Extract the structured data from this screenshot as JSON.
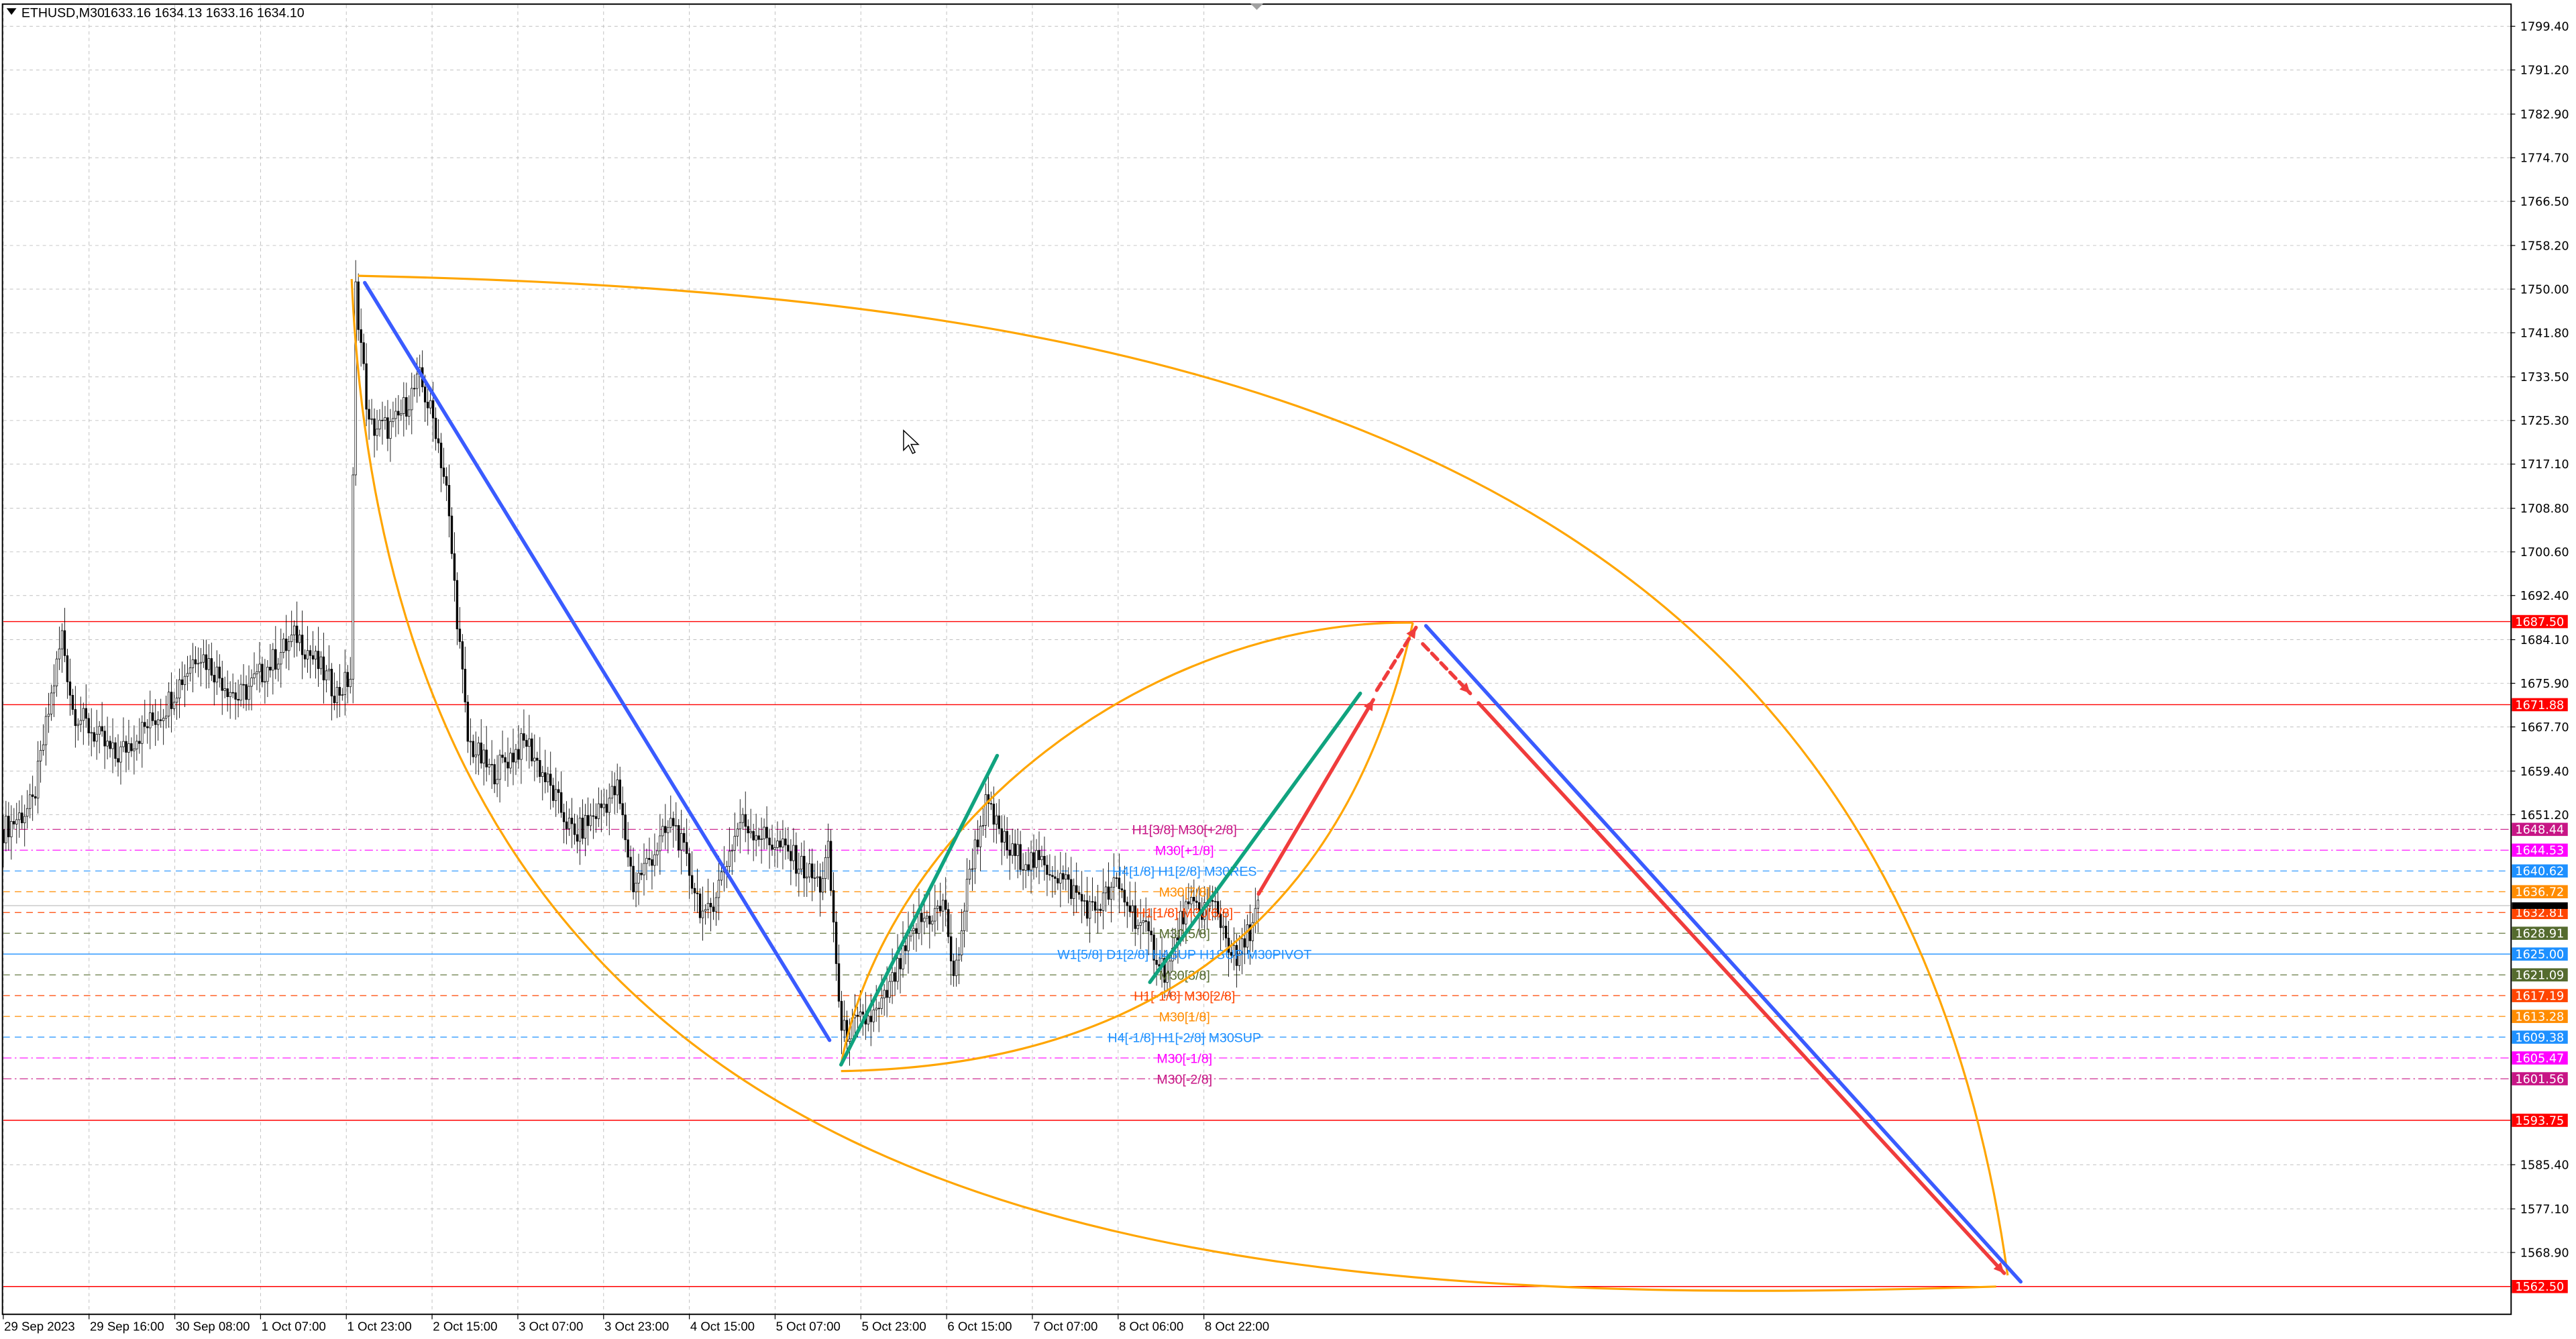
{
  "header": {
    "symbol": "ETHUSD,M30",
    "ohlc": "1633.16 1634.13 1633.16 1634.10"
  },
  "chart_data": {
    "type": "candlestick",
    "symbol": "ETHUSD",
    "timeframe": "M30",
    "ylim": [
      1557.0,
      1803.0
    ],
    "grid": true,
    "y_ticks": [
      "1799.40",
      "1791.20",
      "1782.90",
      "1774.70",
      "1766.50",
      "1758.20",
      "1750.00",
      "1741.80",
      "1733.50",
      "1725.30",
      "1717.10",
      "1708.80",
      "1700.60",
      "1692.40",
      "1684.10",
      "1675.90",
      "1667.70",
      "1659.40",
      "1651.20",
      "1585.40",
      "1577.10",
      "1568.90"
    ],
    "x_ticks": [
      "29 Sep 2023",
      "29 Sep 16:00",
      "30 Sep 08:00",
      "1 Oct 07:00",
      "1 Oct 23:00",
      "2 Oct 15:00",
      "3 Oct 07:00",
      "3 Oct 23:00",
      "4 Oct 15:00",
      "5 Oct 07:00",
      "5 Oct 23:00",
      "6 Oct 15:00",
      "7 Oct 07:00",
      "8 Oct 06:00",
      "8 Oct 22:00"
    ],
    "price_path": [
      [
        0,
        1648.4
      ],
      [
        11,
        1653
      ],
      [
        22,
        1685
      ],
      [
        26,
        1671
      ],
      [
        42,
        1662
      ],
      [
        60,
        1671
      ],
      [
        73,
        1682
      ],
      [
        88,
        1673
      ],
      [
        110,
        1685
      ],
      [
        125,
        1674
      ],
      [
        130,
        1677
      ],
      [
        132,
        1750
      ],
      [
        137,
        1724
      ],
      [
        146,
        1724
      ],
      [
        156,
        1733
      ],
      [
        162,
        1724
      ],
      [
        166,
        1712
      ],
      [
        174,
        1665
      ],
      [
        183,
        1659
      ],
      [
        196,
        1665
      ],
      [
        214,
        1647
      ],
      [
        230,
        1656
      ],
      [
        236,
        1638
      ],
      [
        251,
        1650
      ],
      [
        263,
        1631
      ],
      [
        276,
        1650
      ],
      [
        294,
        1644
      ],
      [
        306,
        1638
      ],
      [
        309,
        1644
      ],
      [
        314,
        1610
      ],
      [
        328,
        1614
      ],
      [
        343,
        1631
      ],
      [
        353,
        1634
      ],
      [
        356,
        1619
      ],
      [
        362,
        1641
      ],
      [
        368,
        1653
      ],
      [
        377,
        1644
      ],
      [
        393,
        1641
      ],
      [
        408,
        1633
      ],
      [
        417,
        1638
      ],
      [
        430,
        1627
      ],
      [
        436,
        1621
      ],
      [
        442,
        1633
      ],
      [
        454,
        1634
      ],
      [
        462,
        1623
      ],
      [
        470,
        1634.1
      ]
    ],
    "current_price": "1634.10",
    "levels": [
      {
        "price": 1687.5,
        "label": "1687.50",
        "color": "#ff0000",
        "style": "solid"
      },
      {
        "price": 1671.88,
        "label": "1671.88",
        "color": "#ff0000",
        "style": "solid"
      },
      {
        "price": 1648.44,
        "label": "1648.44",
        "color": "#c71585",
        "style": "dashdot"
      },
      {
        "price": 1644.53,
        "label": "1644.53",
        "color": "#ff00ff",
        "style": "dashdot"
      },
      {
        "price": 1640.62,
        "label": "1640.62",
        "color": "#1e90ff",
        "style": "dash"
      },
      {
        "price": 1636.72,
        "label": "1636.72",
        "color": "#ff8c00",
        "style": "dash"
      },
      {
        "price": 1632.81,
        "label": "1632.81",
        "color": "#ff4500",
        "style": "dash"
      },
      {
        "price": 1628.91,
        "label": "1628.91",
        "color": "#556b2f",
        "style": "dash"
      },
      {
        "price": 1625.0,
        "label": "1625.00",
        "color": "#1e90ff",
        "style": "solid"
      },
      {
        "price": 1621.09,
        "label": "1621.09",
        "color": "#556b2f",
        "style": "dash"
      },
      {
        "price": 1617.19,
        "label": "1617.19",
        "color": "#ff4500",
        "style": "dash"
      },
      {
        "price": 1613.28,
        "label": "1613.28",
        "color": "#ff8c00",
        "style": "dash"
      },
      {
        "price": 1609.38,
        "label": "1609.38",
        "color": "#1e90ff",
        "style": "dash"
      },
      {
        "price": 1605.47,
        "label": "1605.47",
        "color": "#ff00ff",
        "style": "dashdot"
      },
      {
        "price": 1601.56,
        "label": "1601.56",
        "color": "#c71585",
        "style": "dashdot"
      },
      {
        "price": 1593.75,
        "label": "1593.75",
        "color": "#ff0000",
        "style": "solid"
      },
      {
        "price": 1562.5,
        "label": "1562.50",
        "color": "#ff0000",
        "style": "solid"
      }
    ],
    "level_texts": [
      {
        "price": 1648.44,
        "text": "H1[3/8] M30[+2/8]",
        "color": "#c71585"
      },
      {
        "price": 1644.53,
        "text": "M30[+1/8]",
        "color": "#ff00ff"
      },
      {
        "price": 1640.62,
        "text": "H4[1/8] H1[2/8] M30RES",
        "color": "#1e90ff"
      },
      {
        "price": 1636.72,
        "text": "M30[7/8]",
        "color": "#ff8c00"
      },
      {
        "price": 1632.81,
        "text": "H1[1/8] M30[6/8]",
        "color": "#ff4500"
      },
      {
        "price": 1628.91,
        "text": "M30[5/8]",
        "color": "#556b2f"
      },
      {
        "price": 1625.0,
        "text": "W1[5/8] D1[2/8] H4SUP H1SUP M30PIVOT",
        "color": "#1e90ff"
      },
      {
        "price": 1621.09,
        "text": "M30[3/8]",
        "color": "#556b2f"
      },
      {
        "price": 1617.19,
        "text": "H1[-1/8] M30[2/8]",
        "color": "#ff4500"
      },
      {
        "price": 1613.28,
        "text": "M30[1/8]",
        "color": "#ff8c00"
      },
      {
        "price": 1609.38,
        "text": "H4[-1/8] H1[-2/8] M30SUP",
        "color": "#1e90ff"
      },
      {
        "price": 1605.47,
        "text": "M30[-1/8]",
        "color": "#ff00ff"
      },
      {
        "price": 1601.56,
        "text": "M30[-2/8]",
        "color": "#c71585"
      }
    ],
    "trendlines": [
      {
        "name": "blue-trendline-down",
        "color": "#3a5bff",
        "dash": false,
        "points": [
          [
            135.4,
            1751.2
          ],
          [
            309.5,
            1608.8
          ]
        ]
      },
      {
        "name": "blue-trendline-projection",
        "color": "#3a5bff",
        "dash": false,
        "points": [
          [
            532.9,
            1686.7
          ],
          [
            755.7,
            1563.4
          ]
        ]
      },
      {
        "name": "green-channel-1",
        "color": "#10a37f",
        "dash": false,
        "points": [
          [
            313.8,
            1604.2
          ],
          [
            372.3,
            1662.3
          ]
        ]
      },
      {
        "name": "green-channel-2",
        "color": "#10a37f",
        "dash": false,
        "points": [
          [
            429.5,
            1619.7
          ],
          [
            508.3,
            1674.0
          ]
        ]
      },
      {
        "name": "red-arrow-up",
        "color": "#f03c3c",
        "dash": false,
        "arrow": true,
        "points": [
          [
            470.2,
            1636.3
          ],
          [
            513.2,
            1672.8
          ]
        ]
      },
      {
        "name": "red-dashed-arrow-up",
        "color": "#f03c3c",
        "dash": true,
        "arrow": true,
        "points": [
          [
            514.5,
            1674.6
          ],
          [
            529.2,
            1686.4
          ]
        ]
      },
      {
        "name": "red-dashed-arrow-down",
        "color": "#f03c3c",
        "dash": true,
        "arrow": true,
        "points": [
          [
            531.7,
            1683.3
          ],
          [
            549.5,
            1674.0
          ]
        ]
      },
      {
        "name": "red-arrow-down",
        "color": "#f03c3c",
        "dash": false,
        "arrow": true,
        "points": [
          [
            552.6,
            1672.2
          ],
          [
            749.5,
            1565.0
          ]
        ]
      }
    ],
    "arcs": [
      {
        "name": "orange-arc-upper",
        "color": "#ffa500",
        "points": [
          [
            132.9,
            1752.5
          ],
          [
            429.5,
            1749.4
          ],
          [
            706.5,
            1724.7
          ],
          [
            750.8,
            1564.6
          ]
        ]
      },
      {
        "name": "orange-arc-lower",
        "color": "#ffa500",
        "points": [
          [
            130.5,
            1751.9
          ],
          [
            146.5,
            1572.7
          ],
          [
            429.5,
            1557.3
          ],
          [
            746.5,
            1562.5
          ]
        ]
      },
      {
        "name": "orange-arc-inner-low",
        "color": "#ffa500",
        "points": [
          [
            313.8,
            1603.0
          ],
          [
            429.5,
            1603.9
          ],
          [
            503.4,
            1631.7
          ],
          [
            528.0,
            1687.3
          ]
        ]
      },
      {
        "name": "orange-arc-inner-high",
        "color": "#ffa500",
        "points": [
          [
            313.8,
            1604.2
          ],
          [
            331.1,
            1649.9
          ],
          [
            429.5,
            1687.9
          ],
          [
            528.0,
            1687.3
          ]
        ]
      }
    ],
    "colors": {
      "bull": "#ffffff",
      "bear": "#000000",
      "wick": "#000000",
      "grid": "#c0c0c0"
    }
  }
}
